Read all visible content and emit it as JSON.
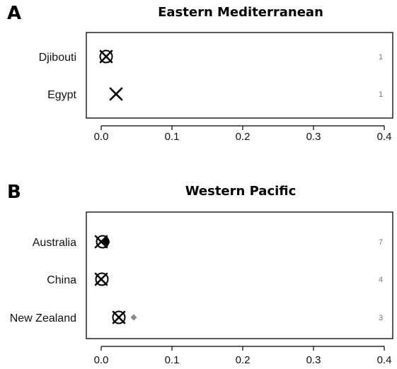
{
  "chart_data": [
    {
      "type": "scatter",
      "panel": "A",
      "title": "Eastern Mediterranean",
      "categories": [
        "Djibouti",
        "Egypt"
      ],
      "x_ticks": [
        "0.0",
        "0.1",
        "0.2",
        "0.3",
        "0.4"
      ],
      "xlim": [
        0,
        0.4
      ],
      "grid": false,
      "series": [
        {
          "marker": "cross",
          "values": [
            0.007,
            0.021
          ]
        },
        {
          "marker": "circle",
          "values": [
            0.007,
            null
          ]
        }
      ],
      "counts": [
        "1",
        "1"
      ]
    },
    {
      "type": "scatter",
      "panel": "B",
      "title": "Western Pacific",
      "categories": [
        "Australia",
        "China",
        "New Zealand"
      ],
      "x_ticks": [
        "0.0",
        "0.1",
        "0.2",
        "0.3",
        "0.4"
      ],
      "xlim": [
        0,
        0.4
      ],
      "grid": false,
      "series": [
        {
          "marker": "cross",
          "values": [
            0.0,
            0.0,
            0.025
          ]
        },
        {
          "marker": "circle",
          "values": [
            0.002,
            0.001,
            0.025
          ]
        },
        {
          "marker": "filled-dot",
          "values": [
            0.007,
            null,
            null
          ]
        },
        {
          "marker": "diamond",
          "color": "#888888",
          "values": [
            null,
            null,
            0.046
          ]
        }
      ],
      "counts": [
        "7",
        "4",
        "3"
      ]
    }
  ]
}
